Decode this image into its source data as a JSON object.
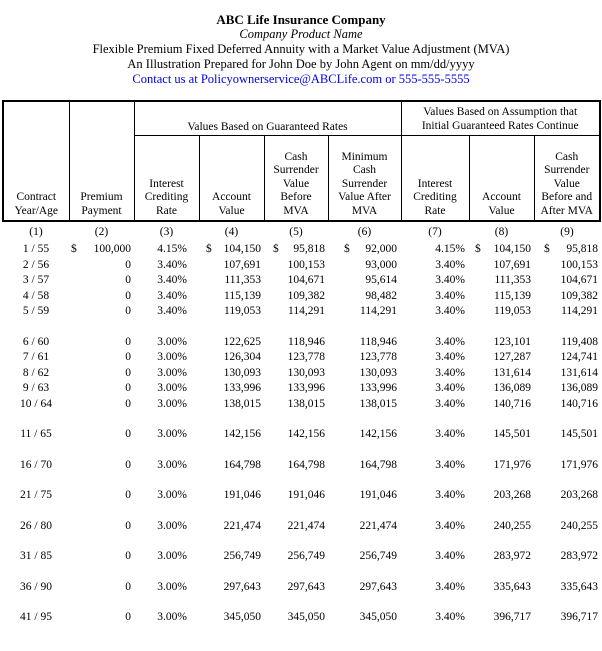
{
  "page": {
    "company": "ABC Life Insurance Company",
    "product_name": "Company Product Name",
    "subtitle1": "Flexible Premium Fixed Deferred Annuity with a Market Value Adjustment (MVA)",
    "subtitle2": "An Illustration Prepared for John Doe by John Agent on mm/dd/yyyy",
    "contact": {
      "prefix": "Contact us at ",
      "email": "Policyownerservice@ABCLife.com",
      "separator": " or ",
      "phone": "555-555-5555"
    },
    "link_color": "#0000EE"
  },
  "table": {
    "group_headers": {
      "guaranteed": "Values Based on Guaranteed Rates",
      "assumption": "Values Based on Assumption that\nInitial Guaranteed Rates Continue"
    },
    "columns": [
      {
        "label": "Contract\nYear/Age",
        "num": "(1)"
      },
      {
        "label": "Premium\nPayment",
        "num": "(2)"
      },
      {
        "label": "Interest\nCrediting\nRate",
        "num": "(3)"
      },
      {
        "label": "Account\nValue",
        "num": "(4)"
      },
      {
        "label": "Cash\nSurrender\nValue\nBefore\nMVA",
        "num": "(5)"
      },
      {
        "label": "Minimum\nCash\nSurrender\nValue After\nMVA",
        "num": "(6)"
      },
      {
        "label": "Interest\nCrediting\nRate",
        "num": "(7)"
      },
      {
        "label": "Account\nValue",
        "num": "(8)"
      },
      {
        "label": "Cash\nSurrender\nValue\nBefore and\nAfter MVA",
        "num": "(9)"
      }
    ],
    "rows": [
      {
        "cells": [
          "1 / 55",
          {
            "d": "$",
            "v": "100,000"
          },
          "4.15%",
          {
            "d": "$",
            "v": "104,150"
          },
          {
            "d": "$",
            "v": "95,818"
          },
          {
            "d": "$",
            "v": "92,000"
          },
          "4.15%",
          {
            "d": "$",
            "v": "104,150"
          },
          {
            "d": "$",
            "v": "95,818"
          }
        ]
      },
      {
        "cells": [
          "2 / 56",
          "0",
          "3.40%",
          "107,691",
          "100,153",
          "93,000",
          "3.40%",
          "107,691",
          "100,153"
        ]
      },
      {
        "cells": [
          "3 / 57",
          "0",
          "3.40%",
          "111,353",
          "104,671",
          "95,614",
          "3.40%",
          "111,353",
          "104,671"
        ]
      },
      {
        "cells": [
          "4 / 58",
          "0",
          "3.40%",
          "115,139",
          "109,382",
          "98,482",
          "3.40%",
          "115,139",
          "109,382"
        ]
      },
      {
        "cells": [
          "5 / 59",
          "0",
          "3.40%",
          "119,053",
          "114,291",
          "114,291",
          "3.40%",
          "119,053",
          "114,291"
        ]
      },
      {
        "gap_before": true,
        "cells": [
          "6 / 60",
          "0",
          "3.00%",
          "122,625",
          "118,946",
          "118,946",
          "3.40%",
          "123,101",
          "119,408"
        ]
      },
      {
        "cells": [
          "7 / 61",
          "0",
          "3.00%",
          "126,304",
          "123,778",
          "123,778",
          "3.40%",
          "127,287",
          "124,741"
        ]
      },
      {
        "cells": [
          "8 / 62",
          "0",
          "3.00%",
          "130,093",
          "130,093",
          "130,093",
          "3.40%",
          "131,614",
          "131,614"
        ]
      },
      {
        "cells": [
          "9 / 63",
          "0",
          "3.00%",
          "133,996",
          "133,996",
          "133,996",
          "3.40%",
          "136,089",
          "136,089"
        ]
      },
      {
        "cells": [
          "10 / 64",
          "0",
          "3.00%",
          "138,015",
          "138,015",
          "138,015",
          "3.40%",
          "140,716",
          "140,716"
        ]
      },
      {
        "gap_before": true,
        "cells": [
          "11 / 65",
          "0",
          "3.00%",
          "142,156",
          "142,156",
          "142,156",
          "3.40%",
          "145,501",
          "145,501"
        ]
      },
      {
        "gap_before": true,
        "cells": [
          "16 / 70",
          "0",
          "3.00%",
          "164,798",
          "164,798",
          "164,798",
          "3.40%",
          "171,976",
          "171,976"
        ]
      },
      {
        "gap_before": true,
        "cells": [
          "21 / 75",
          "0",
          "3.00%",
          "191,046",
          "191,046",
          "191,046",
          "3.40%",
          "203,268",
          "203,268"
        ]
      },
      {
        "gap_before": true,
        "cells": [
          "26 / 80",
          "0",
          "3.00%",
          "221,474",
          "221,474",
          "221,474",
          "3.40%",
          "240,255",
          "240,255"
        ]
      },
      {
        "gap_before": true,
        "cells": [
          "31 / 85",
          "0",
          "3.00%",
          "256,749",
          "256,749",
          "256,749",
          "3.40%",
          "283,972",
          "283,972"
        ]
      },
      {
        "gap_before": true,
        "cells": [
          "36 / 90",
          "0",
          "3.00%",
          "297,643",
          "297,643",
          "297,643",
          "3.40%",
          "335,643",
          "335,643"
        ]
      },
      {
        "gap_before": true,
        "cells": [
          "41 / 95",
          "0",
          "3.00%",
          "345,050",
          "345,050",
          "345,050",
          "3.40%",
          "396,717",
          "396,717"
        ]
      }
    ]
  }
}
